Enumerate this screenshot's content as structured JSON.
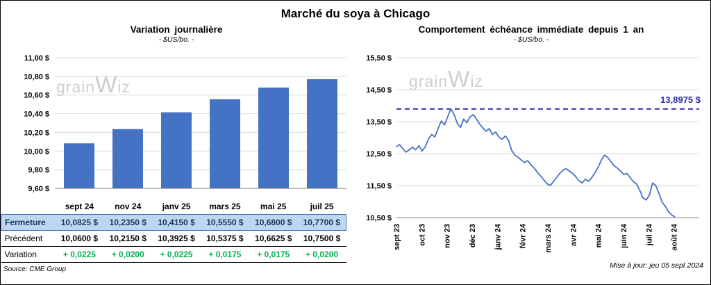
{
  "page": {
    "title": "Marché du soya à Chicago"
  },
  "watermark": {
    "part1": "grain",
    "part2": "W",
    "part3": "iz"
  },
  "left_panel": {
    "title": "Variation journalière",
    "subtitle": "- $US/bo. -"
  },
  "right_panel": {
    "title": "Comportement échéance immédiate depuis 1 an",
    "subtitle": "- $US/bo. -"
  },
  "table": {
    "rows": [
      {
        "label": "Fermeture",
        "values": [
          "10,0825 $",
          "10,2350 $",
          "10,4150 $",
          "10,5550 $",
          "10,6800 $",
          "10,7700 $"
        ]
      },
      {
        "label": "Précédent",
        "values": [
          "10,0600 $",
          "10,2150 $",
          "10,3925 $",
          "10,5375 $",
          "10,6625 $",
          "10,7500 $"
        ]
      },
      {
        "label": "Variation",
        "values": [
          "+ 0,0225",
          "+ 0,0200",
          "+ 0,0225",
          "+ 0,0175",
          "+ 0,0175",
          "+ 0,0200"
        ]
      }
    ]
  },
  "footer": {
    "source": "Source: CME Group",
    "updated": "Mise à jour: jeu 05 sept 2024"
  },
  "chart_data": [
    {
      "type": "bar",
      "title": "Variation journalière",
      "subtitle": "- $US/bo. -",
      "categories": [
        "sept 24",
        "nov 24",
        "janv 25",
        "mars 25",
        "mai 25",
        "juil 25"
      ],
      "values": [
        10.0825,
        10.235,
        10.415,
        10.555,
        10.68,
        10.77
      ],
      "ylim": [
        9.6,
        11.0
      ],
      "ytick_step": 0.2,
      "bar_color": "#4472C4",
      "grid": true,
      "legend": "none"
    },
    {
      "type": "line",
      "title": "Comportement échéance immédiate depuis 1 an",
      "subtitle": "- $US/bo. -",
      "x_labels": [
        "sept 23",
        "oct 23",
        "nov 23",
        "déc 23",
        "janv 24",
        "févr 24",
        "mars 24",
        "avr 24",
        "mai 24",
        "juin 24",
        "juil 24",
        "août 24"
      ],
      "values": [
        12.72,
        12.78,
        12.65,
        12.55,
        12.62,
        12.7,
        12.62,
        12.75,
        12.58,
        12.72,
        12.95,
        13.1,
        13.02,
        13.28,
        13.52,
        13.4,
        13.65,
        13.9,
        13.72,
        13.45,
        13.32,
        13.58,
        13.47,
        13.65,
        13.72,
        13.58,
        13.42,
        13.3,
        13.2,
        13.28,
        13.1,
        13.18,
        13.02,
        12.95,
        13.05,
        12.92,
        12.6,
        12.45,
        12.38,
        12.3,
        12.22,
        12.28,
        12.15,
        12.05,
        11.92,
        11.8,
        11.68,
        11.56,
        11.5,
        11.62,
        11.75,
        11.88,
        11.98,
        12.03,
        11.95,
        11.88,
        11.78,
        11.65,
        11.58,
        11.7,
        11.63,
        11.75,
        11.9,
        12.08,
        12.3,
        12.45,
        12.38,
        12.25,
        12.12,
        12.05,
        11.95,
        11.85,
        11.88,
        11.75,
        11.62,
        11.55,
        11.35,
        11.12,
        11.05,
        11.2,
        11.58,
        11.5,
        11.25,
        10.98,
        10.85,
        10.68,
        10.58,
        10.52
      ],
      "ylim": [
        10.5,
        15.5
      ],
      "ytick_step": 1.0,
      "line_color": "#4472C4",
      "reference_line": {
        "value": 13.8975,
        "label": "13,8975 $",
        "color": "#2B2BB5"
      },
      "x_span_fraction": 0.92,
      "grid": true,
      "legend": "none"
    }
  ]
}
